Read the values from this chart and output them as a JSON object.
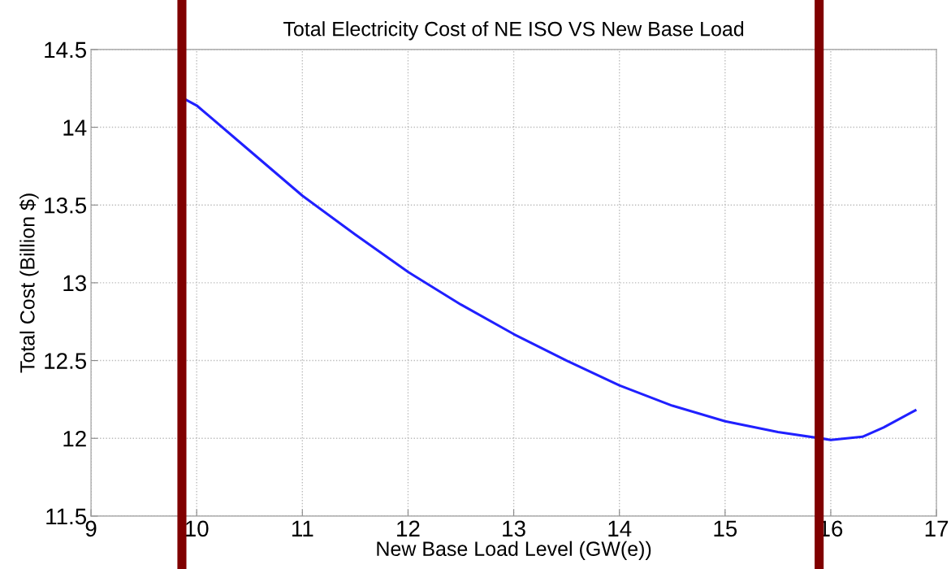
{
  "chart_data": {
    "type": "line",
    "title": "Total Electricity Cost of NE ISO VS New Base Load",
    "xlabel": "New Base Load Level (GW(e))",
    "ylabel": "Total Cost (Billion $)",
    "x": [
      9.89,
      10,
      10.5,
      11,
      11.5,
      12,
      12.5,
      13,
      13.5,
      14,
      14.5,
      15,
      15.5,
      16,
      16.3,
      16.5,
      16.8
    ],
    "series": [
      {
        "color": "#2020ff",
        "values": [
          14.18,
          14.14,
          13.85,
          13.56,
          13.31,
          13.07,
          12.86,
          12.67,
          12.5,
          12.34,
          12.21,
          12.11,
          12.04,
          11.99,
          12.01,
          12.07,
          12.18
        ]
      }
    ],
    "xlim": [
      9,
      17
    ],
    "ylim": [
      11.5,
      14.5
    ],
    "xticks": [
      9,
      10,
      11,
      12,
      13,
      14,
      15,
      16,
      17
    ],
    "yticks": [
      11.5,
      12,
      12.5,
      13,
      13.5,
      14,
      14.5
    ],
    "ref_lines": [
      {
        "axis": "x",
        "value": 9.86,
        "label": null,
        "color": "#800000"
      },
      {
        "axis": "x",
        "value": 15.89,
        "label": null,
        "color": "#800000"
      }
    ],
    "grid": true,
    "marker": "none",
    "line_style": "solid",
    "legend": false
  }
}
